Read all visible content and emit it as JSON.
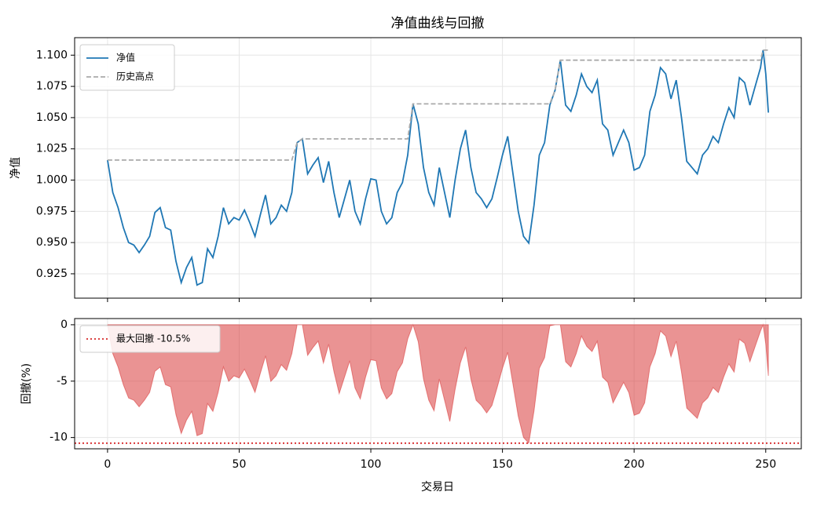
{
  "chart_data": [
    {
      "type": "line",
      "title": "净值曲线与回撤",
      "ylabel": "净值",
      "x": [
        0,
        2,
        4,
        6,
        8,
        10,
        12,
        14,
        16,
        18,
        20,
        22,
        24,
        26,
        28,
        30,
        32,
        34,
        36,
        38,
        40,
        42,
        44,
        46,
        48,
        50,
        52,
        54,
        56,
        58,
        60,
        62,
        64,
        66,
        68,
        70,
        72,
        74,
        76,
        78,
        80,
        82,
        84,
        86,
        88,
        90,
        92,
        94,
        96,
        98,
        100,
        102,
        104,
        106,
        108,
        110,
        112,
        114,
        116,
        118,
        120,
        122,
        124,
        126,
        128,
        130,
        132,
        134,
        136,
        138,
        140,
        142,
        144,
        146,
        148,
        150,
        152,
        154,
        156,
        158,
        160,
        162,
        164,
        166,
        168,
        170,
        172,
        174,
        176,
        178,
        180,
        182,
        184,
        186,
        188,
        190,
        192,
        194,
        196,
        198,
        200,
        202,
        204,
        206,
        208,
        210,
        212,
        214,
        216,
        218,
        220,
        222,
        224,
        226,
        228,
        230,
        232,
        234,
        236,
        238,
        240,
        242,
        244,
        246,
        248,
        249,
        250,
        251
      ],
      "series": [
        {
          "name": "净值",
          "color": "#1f77b4",
          "values": [
            1.016,
            0.99,
            0.978,
            0.962,
            0.95,
            0.948,
            0.942,
            0.948,
            0.955,
            0.974,
            0.978,
            0.962,
            0.96,
            0.935,
            0.918,
            0.93,
            0.938,
            0.916,
            0.918,
            0.945,
            0.938,
            0.955,
            0.978,
            0.965,
            0.97,
            0.968,
            0.976,
            0.966,
            0.955,
            0.972,
            0.988,
            0.965,
            0.97,
            0.98,
            0.975,
            0.99,
            1.03,
            1.033,
            1.005,
            1.012,
            1.018,
            0.998,
            1.015,
            0.99,
            0.97,
            0.985,
            1.0,
            0.975,
            0.965,
            0.985,
            1.001,
            1.0,
            0.975,
            0.965,
            0.97,
            0.99,
            0.998,
            1.02,
            1.061,
            1.045,
            1.01,
            0.99,
            0.98,
            1.01,
            0.99,
            0.97,
            1.0,
            1.025,
            1.04,
            1.01,
            0.99,
            0.985,
            0.978,
            0.985,
            1.002,
            1.02,
            1.035,
            1.005,
            0.975,
            0.955,
            0.9496,
            0.98,
            1.02,
            1.03,
            1.06,
            1.072,
            1.096,
            1.06,
            1.055,
            1.068,
            1.085,
            1.075,
            1.07,
            1.08,
            1.045,
            1.04,
            1.02,
            1.03,
            1.04,
            1.03,
            1.008,
            1.01,
            1.02,
            1.055,
            1.068,
            1.09,
            1.085,
            1.065,
            1.08,
            1.05,
            1.015,
            1.01,
            1.005,
            1.02,
            1.025,
            1.035,
            1.03,
            1.045,
            1.058,
            1.05,
            1.082,
            1.078,
            1.06,
            1.075,
            1.09,
            1.104,
            1.085,
            1.054
          ]
        },
        {
          "name": "历史高点",
          "color": "#aaaaaa",
          "dashed": true,
          "x": [
            0,
            70,
            72,
            74,
            114,
            116,
            168,
            170,
            172,
            248,
            249,
            251
          ],
          "values": [
            1.016,
            1.016,
            1.03,
            1.033,
            1.033,
            1.061,
            1.061,
            1.072,
            1.096,
            1.096,
            1.104,
            1.104
          ]
        }
      ],
      "xlim": [
        -12.5,
        263.5
      ],
      "ylim": [
        0.9055,
        1.114
      ],
      "yticks": [
        {
          "value": 0.925,
          "label": "0.925"
        },
        {
          "value": 0.95,
          "label": "0.950"
        },
        {
          "value": 0.975,
          "label": "0.975"
        },
        {
          "value": 1.0,
          "label": "1.000"
        },
        {
          "value": 1.025,
          "label": "1.025"
        },
        {
          "value": 1.05,
          "label": "1.050"
        },
        {
          "value": 1.075,
          "label": "1.075"
        },
        {
          "value": 1.1,
          "label": "1.100"
        }
      ],
      "grid": true,
      "legend": "upper left"
    },
    {
      "type": "area",
      "ylabel": "回撤(%)",
      "xlabel": "交易日",
      "x": [
        0,
        2,
        4,
        6,
        8,
        10,
        12,
        14,
        16,
        18,
        20,
        22,
        24,
        26,
        28,
        30,
        32,
        34,
        36,
        38,
        40,
        42,
        44,
        46,
        48,
        50,
        52,
        54,
        56,
        58,
        60,
        62,
        64,
        66,
        68,
        70,
        72,
        74,
        76,
        78,
        80,
        82,
        84,
        86,
        88,
        90,
        92,
        94,
        96,
        98,
        100,
        102,
        104,
        106,
        108,
        110,
        112,
        114,
        116,
        118,
        120,
        122,
        124,
        126,
        128,
        130,
        132,
        134,
        136,
        138,
        140,
        142,
        144,
        146,
        148,
        150,
        152,
        154,
        156,
        158,
        160,
        162,
        164,
        166,
        168,
        170,
        172,
        174,
        176,
        178,
        180,
        182,
        184,
        186,
        188,
        190,
        192,
        194,
        196,
        198,
        200,
        202,
        204,
        206,
        208,
        210,
        212,
        214,
        216,
        218,
        220,
        222,
        224,
        226,
        228,
        230,
        232,
        234,
        236,
        238,
        240,
        242,
        244,
        246,
        248,
        249,
        250,
        251
      ],
      "series": [
        {
          "color": "#d62728",
          "values": [
            0,
            -2.56,
            -3.74,
            -5.31,
            -6.5,
            -6.69,
            -7.28,
            -6.69,
            -6.0,
            -4.13,
            -3.74,
            -5.31,
            -5.51,
            -7.97,
            -9.65,
            -8.46,
            -7.68,
            -9.84,
            -9.65,
            -6.99,
            -7.68,
            -6.0,
            -3.74,
            -5.02,
            -4.53,
            -4.72,
            -3.94,
            -4.92,
            -6.0,
            -4.33,
            -2.76,
            -5.02,
            -4.53,
            -3.54,
            -4.04,
            -2.56,
            0,
            0,
            -2.71,
            -2.03,
            -1.45,
            -3.39,
            -1.74,
            -4.16,
            -6.1,
            -4.65,
            -3.19,
            -5.61,
            -6.58,
            -4.65,
            -3.1,
            -3.19,
            -5.61,
            -6.58,
            -6.1,
            -4.16,
            -3.39,
            -1.26,
            0,
            -1.51,
            -4.81,
            -6.69,
            -7.63,
            -4.81,
            -6.69,
            -8.58,
            -5.75,
            -3.39,
            -1.98,
            -4.81,
            -6.69,
            -7.16,
            -7.82,
            -7.16,
            -5.56,
            -3.86,
            -2.45,
            -5.28,
            -8.11,
            -9.99,
            -10.5,
            -7.63,
            -3.86,
            -2.92,
            -0.09,
            0,
            0,
            -3.28,
            -3.74,
            -2.55,
            -1.0,
            -1.92,
            -2.37,
            -1.46,
            -4.65,
            -5.11,
            -6.93,
            -6.02,
            -5.11,
            -6.02,
            -8.03,
            -7.85,
            -6.93,
            -3.74,
            -2.55,
            -0.55,
            -1.0,
            -2.83,
            -1.46,
            -4.2,
            -7.39,
            -7.85,
            -8.3,
            -6.93,
            -6.48,
            -5.57,
            -6.02,
            -4.65,
            -3.47,
            -4.2,
            -1.28,
            -1.64,
            -3.28,
            -1.92,
            -0.55,
            0,
            -1.72,
            -4.53
          ]
        }
      ],
      "hline": {
        "name": "最大回撤 -10.5%",
        "value": -10.5,
        "color": "#d62728"
      },
      "xlim": [
        -12.5,
        263.5
      ],
      "ylim": [
        -11,
        0.55
      ],
      "xticks": [
        0,
        50,
        100,
        150,
        200,
        250
      ],
      "yticks": [
        0,
        -5,
        -10
      ],
      "grid": true,
      "legend": "upper left"
    }
  ]
}
